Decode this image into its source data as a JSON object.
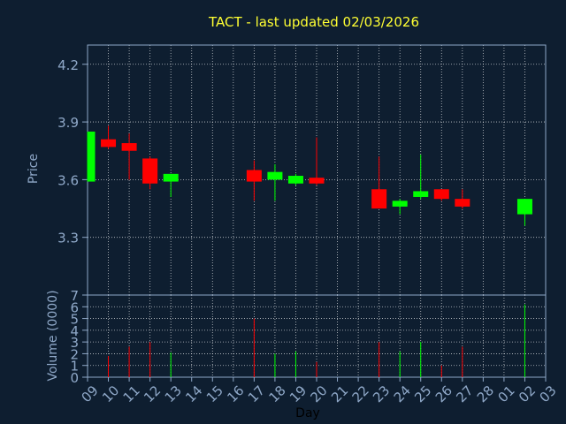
{
  "colors": {
    "background": "#0e1e30",
    "axis": "#8fa8c8",
    "grid": "#ffffff",
    "title": "#ffff33",
    "up": "#00ff00",
    "down": "#ff0000",
    "text": "#8fa8c8",
    "xlabel": "#000000"
  },
  "chart_data": {
    "type": "candlestick",
    "title": "TACT - last updated 02/03/2026",
    "xlabel": "Day",
    "price_panel": {
      "ylabel": "Price",
      "ylim": [
        3.0,
        4.3
      ],
      "yticks": [
        "3.3",
        "3.6",
        "3.9",
        "4.2"
      ],
      "ytick_values": [
        3.3,
        3.6,
        3.9,
        4.2
      ]
    },
    "volume_panel": {
      "ylabel": "Volume (0000)",
      "ylim": [
        0,
        7
      ],
      "yticks": [
        "0",
        "1",
        "2",
        "3",
        "4",
        "5",
        "6",
        "7"
      ]
    },
    "x_ticks": [
      "09",
      "10",
      "11",
      "12",
      "13",
      "14",
      "15",
      "16",
      "17",
      "18",
      "19",
      "20",
      "21",
      "22",
      "23",
      "24",
      "25",
      "26",
      "27",
      "28",
      "01",
      "02",
      "03"
    ],
    "grid": true,
    "candles": [
      {
        "day": "09",
        "index": 0,
        "open": 3.59,
        "high": 3.85,
        "low": 3.59,
        "close": 3.85,
        "volume": 0
      },
      {
        "day": "10",
        "index": 1,
        "open": 3.81,
        "high": 3.88,
        "low": 3.76,
        "close": 3.77,
        "volume": 1.8
      },
      {
        "day": "11",
        "index": 2,
        "open": 3.79,
        "high": 3.84,
        "low": 3.6,
        "close": 3.75,
        "volume": 2.6
      },
      {
        "day": "12",
        "index": 3,
        "open": 3.71,
        "high": 3.72,
        "low": 3.55,
        "close": 3.58,
        "volume": 3.0
      },
      {
        "day": "13",
        "index": 4,
        "open": 3.59,
        "high": 3.63,
        "low": 3.51,
        "close": 3.63,
        "volume": 2.1
      },
      {
        "day": "17",
        "index": 8,
        "open": 3.65,
        "high": 3.7,
        "low": 3.49,
        "close": 3.59,
        "volume": 5.0
      },
      {
        "day": "18",
        "index": 9,
        "open": 3.6,
        "high": 3.68,
        "low": 3.49,
        "close": 3.64,
        "volume": 2.0
      },
      {
        "day": "19",
        "index": 10,
        "open": 3.58,
        "high": 3.63,
        "low": 3.57,
        "close": 3.62,
        "volume": 2.2
      },
      {
        "day": "20",
        "index": 11,
        "open": 3.61,
        "high": 3.82,
        "low": 3.57,
        "close": 3.58,
        "volume": 1.3
      },
      {
        "day": "23",
        "index": 14,
        "open": 3.55,
        "high": 3.72,
        "low": 3.45,
        "close": 3.45,
        "volume": 3.0
      },
      {
        "day": "24",
        "index": 15,
        "open": 3.46,
        "high": 3.5,
        "low": 3.42,
        "close": 3.49,
        "volume": 2.2
      },
      {
        "day": "25",
        "index": 16,
        "open": 3.51,
        "high": 3.73,
        "low": 3.5,
        "close": 3.54,
        "volume": 3.0
      },
      {
        "day": "26",
        "index": 17,
        "open": 3.55,
        "high": 3.55,
        "low": 3.49,
        "close": 3.5,
        "volume": 1.0
      },
      {
        "day": "27",
        "index": 18,
        "open": 3.5,
        "high": 3.55,
        "low": 3.45,
        "close": 3.46,
        "volume": 2.6
      },
      {
        "day": "02",
        "index": 21,
        "open": 3.42,
        "high": 3.5,
        "low": 3.36,
        "close": 3.5,
        "volume": 6.2
      }
    ]
  }
}
